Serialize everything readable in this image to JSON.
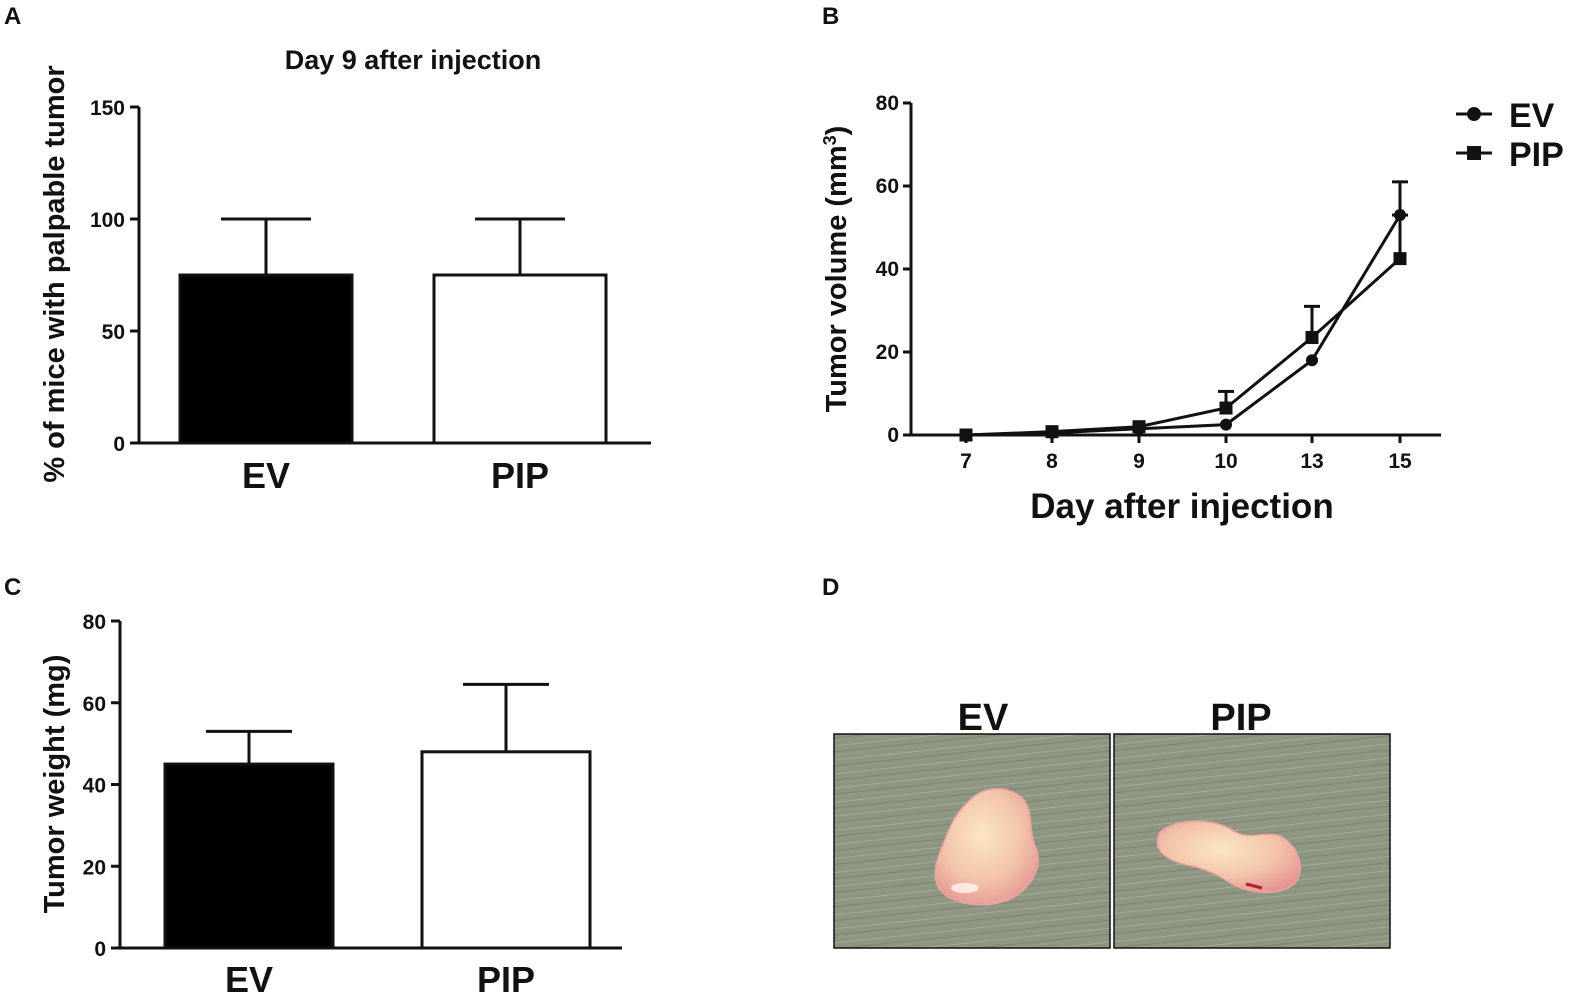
{
  "panels": {
    "a": "A",
    "b": "B",
    "c": "C",
    "d": "D"
  },
  "colors": {
    "ink": "#111111",
    "ev_bar": "#000000",
    "pip_bar": "#ffffff",
    "surface": "#8e9682",
    "tissue": "#f2c3b0"
  },
  "chart_data": [
    {
      "id": "A",
      "type": "bar",
      "title": "Day 9 after injection",
      "ylabel": "% of mice with palpable tumor",
      "xlabel": "",
      "categories": [
        "EV",
        "PIP"
      ],
      "values": [
        75,
        75
      ],
      "errors": [
        25,
        25
      ],
      "fills": [
        "#000000",
        "#ffffff"
      ],
      "ylim": [
        0,
        150
      ],
      "yticks": [
        0,
        50,
        100,
        150
      ],
      "ytick_labels": [
        "0",
        "50",
        "100",
        "150"
      ]
    },
    {
      "id": "B",
      "type": "line",
      "title": "",
      "ylabel": "Tumor volume (mm",
      "ylabel_sup": "3",
      "ylabel_close": ")",
      "xlabel": "Day after injection",
      "x": [
        "7",
        "8",
        "9",
        "10",
        "13",
        "15"
      ],
      "ylim": [
        0,
        80
      ],
      "yticks": [
        0,
        20,
        40,
        60,
        80
      ],
      "ytick_labels": [
        "0",
        "20",
        "40",
        "60",
        "80"
      ],
      "legend_position": "top-right",
      "series": [
        {
          "name": "EV",
          "marker": "circle",
          "values": [
            0,
            0.5,
            1.5,
            2.5,
            18,
            53
          ],
          "errors": [
            0,
            0,
            0,
            0,
            0,
            0
          ]
        },
        {
          "name": "PIP",
          "marker": "square",
          "values": [
            0,
            0.8,
            2,
            6.5,
            23.5,
            42.5
          ],
          "errors": [
            0,
            0,
            0,
            4,
            7.5,
            18.5
          ]
        }
      ]
    },
    {
      "id": "C",
      "type": "bar",
      "title": "",
      "ylabel": "Tumor weight (mg)",
      "xlabel": "",
      "categories": [
        "EV",
        "PIP"
      ],
      "values": [
        45,
        48
      ],
      "errors": [
        8,
        16.5
      ],
      "fills": [
        "#000000",
        "#ffffff"
      ],
      "ylim": [
        0,
        80
      ],
      "yticks": [
        0,
        20,
        40,
        60,
        80
      ],
      "ytick_labels": [
        "0",
        "20",
        "40",
        "60",
        "80"
      ]
    }
  ],
  "photo": {
    "left_label": "EV",
    "right_label": "PIP"
  }
}
